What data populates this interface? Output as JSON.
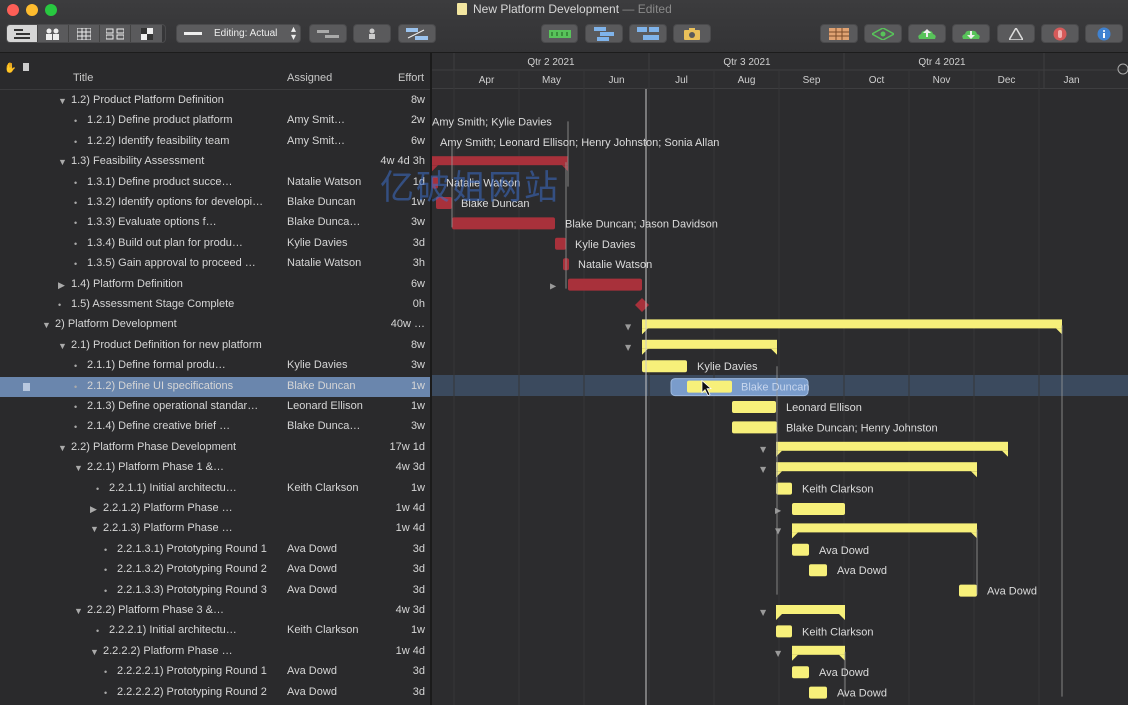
{
  "window": {
    "title": "New Platform Development",
    "edited": "— Edited"
  },
  "toolbar": {
    "editing_label": "Editing: Actual",
    "colors": {
      "table": "#c98a55",
      "green": "#4fb453",
      "blue": "#3f82d1",
      "red": "#d65a5a"
    }
  },
  "outline": {
    "columns": {
      "title": "Title",
      "assigned": "Assigned",
      "effort": "Effort"
    },
    "rows": [
      {
        "title": "1.2)  Product Platform Definition",
        "assigned": "",
        "effort": "8w"
      },
      {
        "title": "1.2.1)  Define product platform",
        "assigned": "Amy Smit…",
        "effort": "2w"
      },
      {
        "title": "1.2.2)  Identify feasibility team",
        "assigned": "Amy Smit…",
        "effort": "6w"
      },
      {
        "title": "1.3)  Feasibility Assessment",
        "assigned": "",
        "effort": "4w 4d 3h"
      },
      {
        "title": "1.3.1)  Define product succe…",
        "assigned": "Natalie Watson",
        "effort": "1d"
      },
      {
        "title": "1.3.2)  Identify options for developi…",
        "assigned": "Blake Duncan",
        "effort": "1w"
      },
      {
        "title": "1.3.3)  Evaluate options f…",
        "assigned": "Blake Dunca…",
        "effort": "3w"
      },
      {
        "title": "1.3.4)  Build out plan for produ…",
        "assigned": "Kylie Davies",
        "effort": "3d"
      },
      {
        "title": "1.3.5)  Gain approval to proceed …",
        "assigned": "Natalie Watson",
        "effort": "3h"
      },
      {
        "title": "1.4)  Platform Definition",
        "assigned": "",
        "effort": "6w"
      },
      {
        "title": "1.5)  Assessment Stage Complete",
        "assigned": "",
        "effort": "0h"
      },
      {
        "title": "2)  Platform Development",
        "assigned": "",
        "effort": "40w …"
      },
      {
        "title": "2.1)  Product Definition for new platform",
        "assigned": "",
        "effort": "8w"
      },
      {
        "title": "2.1.1)  Define formal produ…",
        "assigned": "Kylie Davies",
        "effort": "3w"
      },
      {
        "title": "2.1.2)  Define UI specifications",
        "assigned": "Blake Duncan",
        "effort": "1w"
      },
      {
        "title": "2.1.3)  Define operational standar…",
        "assigned": "Leonard Ellison",
        "effort": "1w"
      },
      {
        "title": "2.1.4)  Define creative brief …",
        "assigned": "Blake Dunca…",
        "effort": "3w"
      },
      {
        "title": "2.2)  Platform Phase Development",
        "assigned": "",
        "effort": "17w 1d"
      },
      {
        "title": "2.2.1)  Platform Phase 1 &…",
        "assigned": "",
        "effort": "4w 3d"
      },
      {
        "title": "2.2.1.1)  Initial architectu…",
        "assigned": "Keith Clarkson",
        "effort": "1w"
      },
      {
        "title": "2.2.1.2)  Platform Phase …",
        "assigned": "",
        "effort": "1w 4d"
      },
      {
        "title": "2.2.1.3)  Platform Phase …",
        "assigned": "",
        "effort": "1w 4d"
      },
      {
        "title": "2.2.1.3.1)  Prototyping Round 1",
        "assigned": "Ava Dowd",
        "effort": "3d"
      },
      {
        "title": "2.2.1.3.2)  Prototyping Round 2",
        "assigned": "Ava Dowd",
        "effort": "3d"
      },
      {
        "title": "2.2.1.3.3)  Prototyping Round 3",
        "assigned": "Ava Dowd",
        "effort": "3d"
      },
      {
        "title": "2.2.2)  Platform Phase 3 &…",
        "assigned": "",
        "effort": "4w 3d"
      },
      {
        "title": "2.2.2.1)  Initial architectu…",
        "assigned": "Keith Clarkson",
        "effort": "1w"
      },
      {
        "title": "2.2.2.2)  Platform Phase …",
        "assigned": "",
        "effort": "1w 4d"
      },
      {
        "title": "2.2.2.2.1)  Prototyping Round 1",
        "assigned": "Ava Dowd",
        "effort": "3d"
      },
      {
        "title": "2.2.2.2.2)  Prototyping Round 2",
        "assigned": "Ava Dowd",
        "effort": "3d"
      }
    ]
  },
  "gantt": {
    "quarters": [
      "Qtr 2 2021",
      "Qtr 3 2021",
      "Qtr 4 2021"
    ],
    "months": [
      "Apr",
      "May",
      "Jun",
      "Jul",
      "Aug",
      "Sep",
      "Oct",
      "Nov",
      "Dec",
      "Jan"
    ],
    "bar_labels": [
      "Amy Smith; Kylie Davies",
      "Amy Smith; Leonard Ellison; Henry Johnston; Sonia Allan",
      "Natalie Watson",
      "Blake Duncan",
      "Blake Duncan; Jason Davidson",
      "Kylie Davies",
      "Natalie Watson",
      "Kylie Davies",
      "Blake Duncan",
      "Leonard Ellison",
      "Blake Duncan; Henry Johnston",
      "Keith Clarkson",
      "Ava Dowd",
      "Ava Dowd",
      "Ava Dowd",
      "Keith Clarkson",
      "Ava Dowd",
      "Ava Dowd"
    ],
    "colors": {
      "red": "#a8313b",
      "yellow": "#f7f07a",
      "selected": "#6f93c7"
    }
  },
  "watermark": "亿破姐网站"
}
